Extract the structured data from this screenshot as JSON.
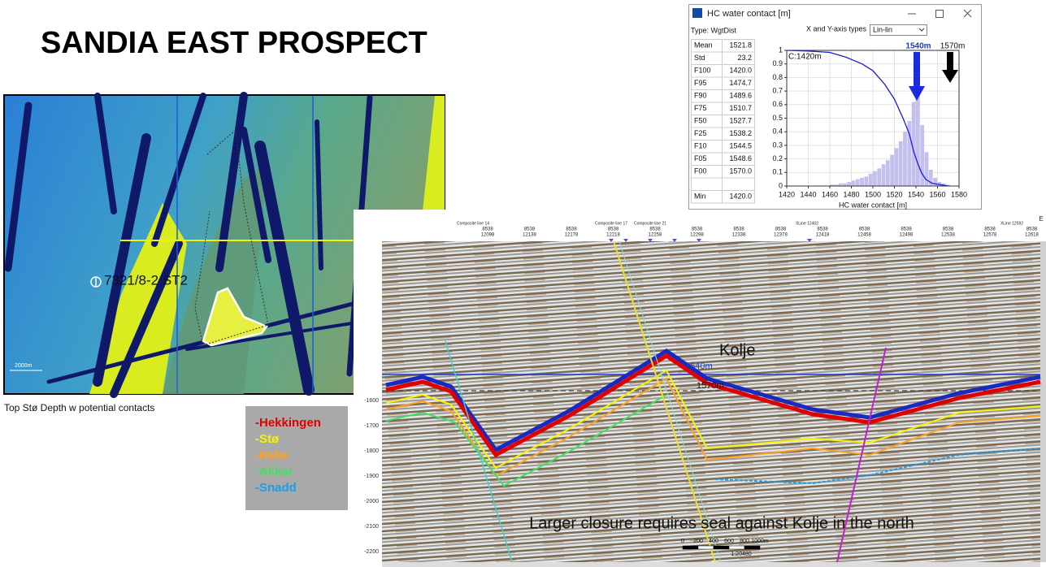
{
  "title": "SANDIA EAST PROSPECT",
  "map": {
    "well_label": "7321/8-2 ST2",
    "scale_label": "2000m",
    "caption": "Top Stø Depth w potential contacts"
  },
  "legend": {
    "items": [
      {
        "label": "-Hekkingen",
        "color": "#e00000"
      },
      {
        "label": "-Stø",
        "color": "#f5f500"
      },
      {
        "label": "-Reke",
        "color": "#ffa020"
      },
      {
        "label": "-Akkar",
        "color": "#40e060"
      },
      {
        "label": "-Snadd",
        "color": "#1e9ee8"
      }
    ]
  },
  "window": {
    "title": "HC water contact [m]",
    "type_label": "Type: WgtDist",
    "axis_types_label": "X and Y-axis types",
    "axis_types_value": "Lin-lin",
    "stats": [
      [
        "Mean",
        "1521.8"
      ],
      [
        "Std",
        "23.2"
      ],
      [
        "F100",
        "1420.0"
      ],
      [
        "F95",
        "1474.7"
      ],
      [
        "F90",
        "1489.6"
      ],
      [
        "F75",
        "1510.7"
      ],
      [
        "F50",
        "1527.7"
      ],
      [
        "F25",
        "1538.2"
      ],
      [
        "F10",
        "1544.5"
      ],
      [
        "F05",
        "1548.6"
      ],
      [
        "F00",
        "1570.0"
      ]
    ],
    "min": [
      "Min",
      "1420.0"
    ]
  },
  "chart_data": {
    "type": "histogram",
    "xlabel": "HC water contact [m]",
    "xlim": [
      1420,
      1580
    ],
    "xticks": [
      1420,
      1440,
      1460,
      1480,
      1500,
      1520,
      1540,
      1560,
      1580
    ],
    "ylim": [
      0,
      1
    ],
    "yticks": [
      0,
      0.1,
      0.2,
      0.3,
      0.4,
      0.5,
      0.6,
      0.7,
      0.8,
      0.9,
      1
    ],
    "grid": true,
    "bins": [
      1460,
      1464,
      1468,
      1472,
      1476,
      1480,
      1484,
      1488,
      1492,
      1496,
      1500,
      1504,
      1508,
      1512,
      1516,
      1520,
      1524,
      1528,
      1532,
      1536,
      1540,
      1544,
      1548,
      1552,
      1556,
      1560,
      1564,
      1568,
      1572
    ],
    "values": [
      0.01,
      0.01,
      0.02,
      0.02,
      0.03,
      0.04,
      0.05,
      0.06,
      0.07,
      0.09,
      0.11,
      0.13,
      0.16,
      0.19,
      0.23,
      0.28,
      0.33,
      0.4,
      0.48,
      0.62,
      0.75,
      0.45,
      0.25,
      0.12,
      0.06,
      0.03,
      0.02,
      0.01
    ],
    "color": "#c4c0ee",
    "line": {
      "color": "#1a1adc",
      "x": [
        1420,
        1440,
        1460,
        1475,
        1490,
        1500,
        1511,
        1520,
        1528,
        1534,
        1538,
        1542,
        1545,
        1549,
        1555,
        1570
      ],
      "values": [
        1,
        0.995,
        0.985,
        0.95,
        0.9,
        0.85,
        0.75,
        0.64,
        0.5,
        0.38,
        0.25,
        0.16,
        0.1,
        0.05,
        0.02,
        0
      ]
    },
    "annotations": [
      "C:1420m",
      "1540m",
      "1570m"
    ]
  },
  "seismic": {
    "header_labels": [
      "Composite line 14",
      "Composite line 17",
      "Composite line 21",
      "XLine 12402",
      "XLine 12592",
      "E"
    ],
    "inline": "8538",
    "xlines": [
      "12098",
      "12138",
      "12178",
      "12218",
      "12258",
      "12298",
      "12338",
      "12378",
      "12418",
      "12458",
      "12498",
      "12538",
      "12578",
      "12618"
    ],
    "depth_labels": [
      "-1600",
      "-1700",
      "-1800",
      "-1900",
      "-2000",
      "-2100",
      "-2200"
    ],
    "fault_label": "Kolje",
    "contact_1": "1540m",
    "contact_2": "1570m",
    "note": "Larger closure requires seal against Kolje in the north",
    "scale_labels": [
      "0",
      "200",
      "400",
      "600",
      "800",
      "1000m"
    ],
    "scale_ratio": "1:20480"
  }
}
